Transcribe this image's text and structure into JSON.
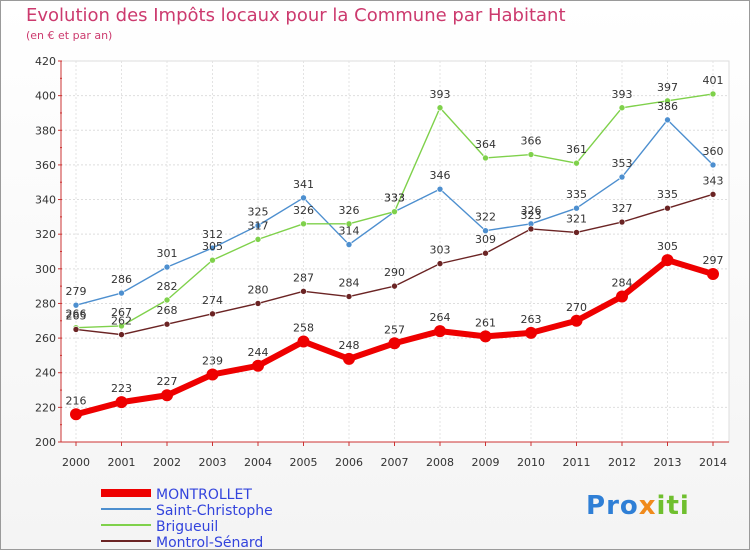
{
  "header": {
    "title": "Evolution des Impôts locaux pour la Commune par Habitant",
    "subtitle": "(en € et par an)"
  },
  "logo": {
    "text": "Proxiti",
    "colors": [
      "#2f7fd6",
      "#f08a1c",
      "#6fbf2e"
    ]
  },
  "chart_data": {
    "type": "line",
    "title": "Evolution des Impôts locaux pour la Commune par Habitant",
    "subtitle": "(en € et par an)",
    "xlabel": "",
    "ylabel": "",
    "x": [
      "2000",
      "2001",
      "2002",
      "2003",
      "2004",
      "2005",
      "2006",
      "2007",
      "2008",
      "2009",
      "2010",
      "2011",
      "2012",
      "2013",
      "2014"
    ],
    "ylim": [
      200,
      420
    ],
    "yticks": [
      200,
      220,
      240,
      260,
      280,
      300,
      320,
      340,
      360,
      380,
      400,
      420
    ],
    "grid": true,
    "legend_position": "bottom-left",
    "series": [
      {
        "name": "MONTROLLET",
        "color": "#ee0000",
        "values": [
          216,
          223,
          227,
          239,
          244,
          258,
          248,
          257,
          264,
          261,
          263,
          270,
          284,
          305,
          297
        ]
      },
      {
        "name": "Saint-Christophe",
        "color": "#4d8fcf",
        "values": [
          279,
          286,
          301,
          312,
          325,
          341,
          314,
          333,
          346,
          322,
          326,
          335,
          353,
          386,
          360
        ]
      },
      {
        "name": "Brigueuil",
        "color": "#7fd14b",
        "values": [
          266,
          267,
          282,
          305,
          317,
          326,
          326,
          333,
          393,
          364,
          366,
          361,
          393,
          397,
          401
        ]
      },
      {
        "name": "Montrol-Sénard",
        "color": "#6b2424",
        "values": [
          265,
          262,
          268,
          274,
          280,
          287,
          284,
          290,
          303,
          309,
          323,
          321,
          327,
          335,
          343
        ]
      }
    ]
  }
}
